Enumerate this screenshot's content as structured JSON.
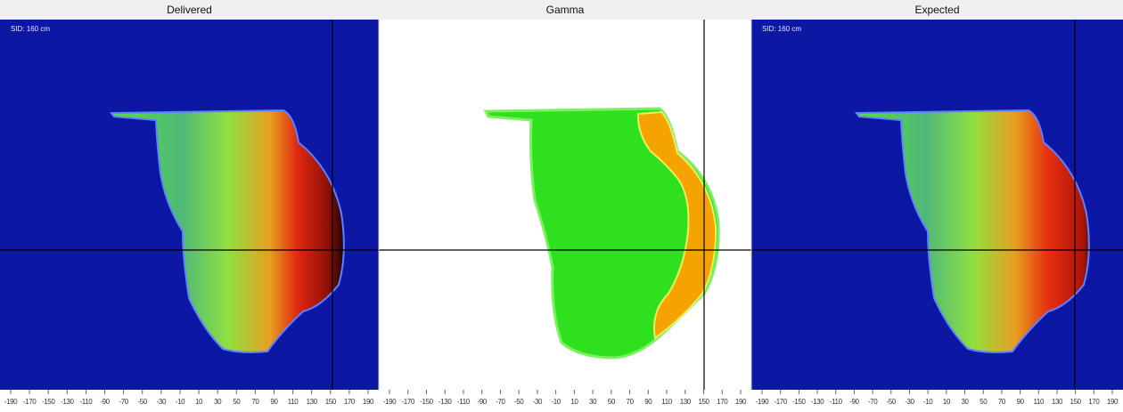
{
  "panels": [
    {
      "title": "Delivered",
      "annotation": "SID: 160 cm",
      "axis_ticks": [
        -190,
        -170,
        -150,
        -130,
        -110,
        -90,
        -70,
        -50,
        -30,
        -10,
        10,
        30,
        50,
        70,
        90,
        110,
        130,
        150,
        170,
        190
      ]
    },
    {
      "title": "Gamma",
      "axis_ticks": [
        -190,
        -170,
        -150,
        -130,
        -110,
        -90,
        -70,
        -50,
        -30,
        -10,
        10,
        30,
        50,
        70,
        90,
        110,
        130,
        150,
        170,
        190
      ]
    },
    {
      "title": "Expected",
      "annotation": "SID: 160 cm",
      "axis_ticks": [
        -190,
        -170,
        -150,
        -130,
        -110,
        -90,
        -70,
        -50,
        -30,
        -10,
        10,
        30,
        50,
        70,
        90,
        110,
        130,
        150,
        170,
        190
      ]
    }
  ]
}
